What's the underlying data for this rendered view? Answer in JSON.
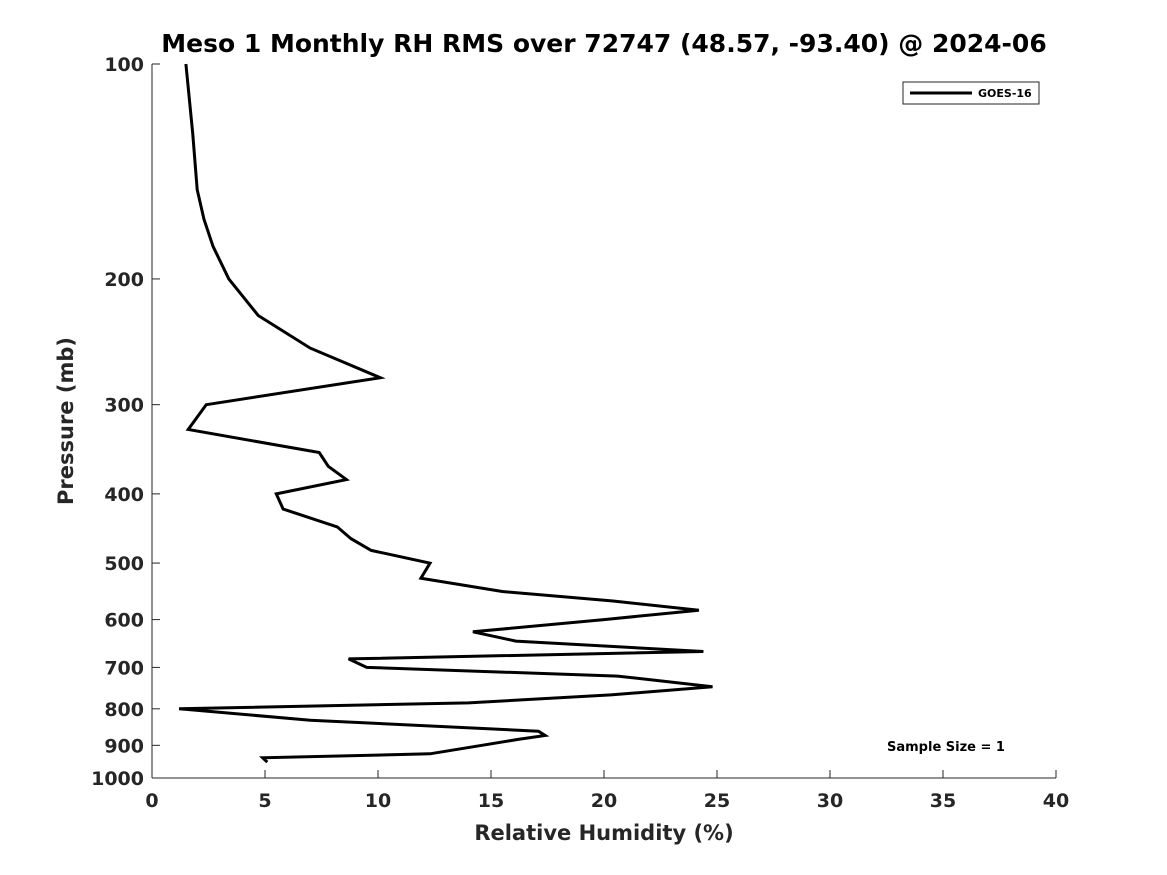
{
  "chart_data": {
    "type": "line",
    "title": "Meso 1 Monthly RH RMS over 72747 (48.57, -93.40) @ 2024-06",
    "xlabel": "Relative Humidity (%)",
    "ylabel": "Pressure (mb)",
    "xlim": [
      0,
      40
    ],
    "ylim": [
      100,
      1000
    ],
    "y_scale": "log",
    "y_reversed": true,
    "x_ticks": [
      0,
      5,
      10,
      15,
      20,
      25,
      30,
      35,
      40
    ],
    "x_tick_labels": [
      "0",
      "5",
      "10",
      "15",
      "20",
      "25",
      "30",
      "35",
      "40"
    ],
    "y_ticks": [
      100,
      200,
      300,
      400,
      500,
      600,
      700,
      800,
      900,
      1000
    ],
    "y_tick_labels": [
      "100",
      "200",
      "300",
      "400",
      "500",
      "600",
      "700",
      "800",
      "900",
      "1000"
    ],
    "grid": false,
    "legend_position": "top-right",
    "annotation": "Sample Size = 1",
    "series": [
      {
        "name": "GOES-16",
        "color": "#000000",
        "points": [
          [
            1.5,
            100
          ],
          [
            1.8,
            125
          ],
          [
            2.0,
            150
          ],
          [
            2.3,
            165
          ],
          [
            2.7,
            180
          ],
          [
            3.4,
            200
          ],
          [
            4.7,
            225
          ],
          [
            7.0,
            250
          ],
          [
            10.1,
            275
          ],
          [
            2.4,
            300
          ],
          [
            1.6,
            325
          ],
          [
            7.4,
            350
          ],
          [
            7.8,
            366
          ],
          [
            8.6,
            382
          ],
          [
            5.5,
            400
          ],
          [
            5.8,
            420
          ],
          [
            8.2,
            445
          ],
          [
            8.8,
            462
          ],
          [
            9.7,
            480
          ],
          [
            12.3,
            500
          ],
          [
            11.9,
            525
          ],
          [
            15.5,
            548
          ],
          [
            20.4,
            565
          ],
          [
            24.2,
            582
          ],
          [
            20.0,
            600
          ],
          [
            14.2,
            624
          ],
          [
            16.1,
            643
          ],
          [
            24.4,
            665
          ],
          [
            8.7,
            681
          ],
          [
            9.5,
            700
          ],
          [
            20.6,
            720
          ],
          [
            24.8,
            745
          ],
          [
            20.3,
            765
          ],
          [
            14.0,
            785
          ],
          [
            1.2,
            800
          ],
          [
            7.0,
            830
          ],
          [
            17.1,
            860
          ],
          [
            17.4,
            872
          ],
          [
            16.2,
            883
          ],
          [
            14.6,
            900
          ],
          [
            12.3,
            925
          ],
          [
            4.9,
            937
          ],
          [
            5.1,
            950
          ]
        ]
      }
    ]
  }
}
